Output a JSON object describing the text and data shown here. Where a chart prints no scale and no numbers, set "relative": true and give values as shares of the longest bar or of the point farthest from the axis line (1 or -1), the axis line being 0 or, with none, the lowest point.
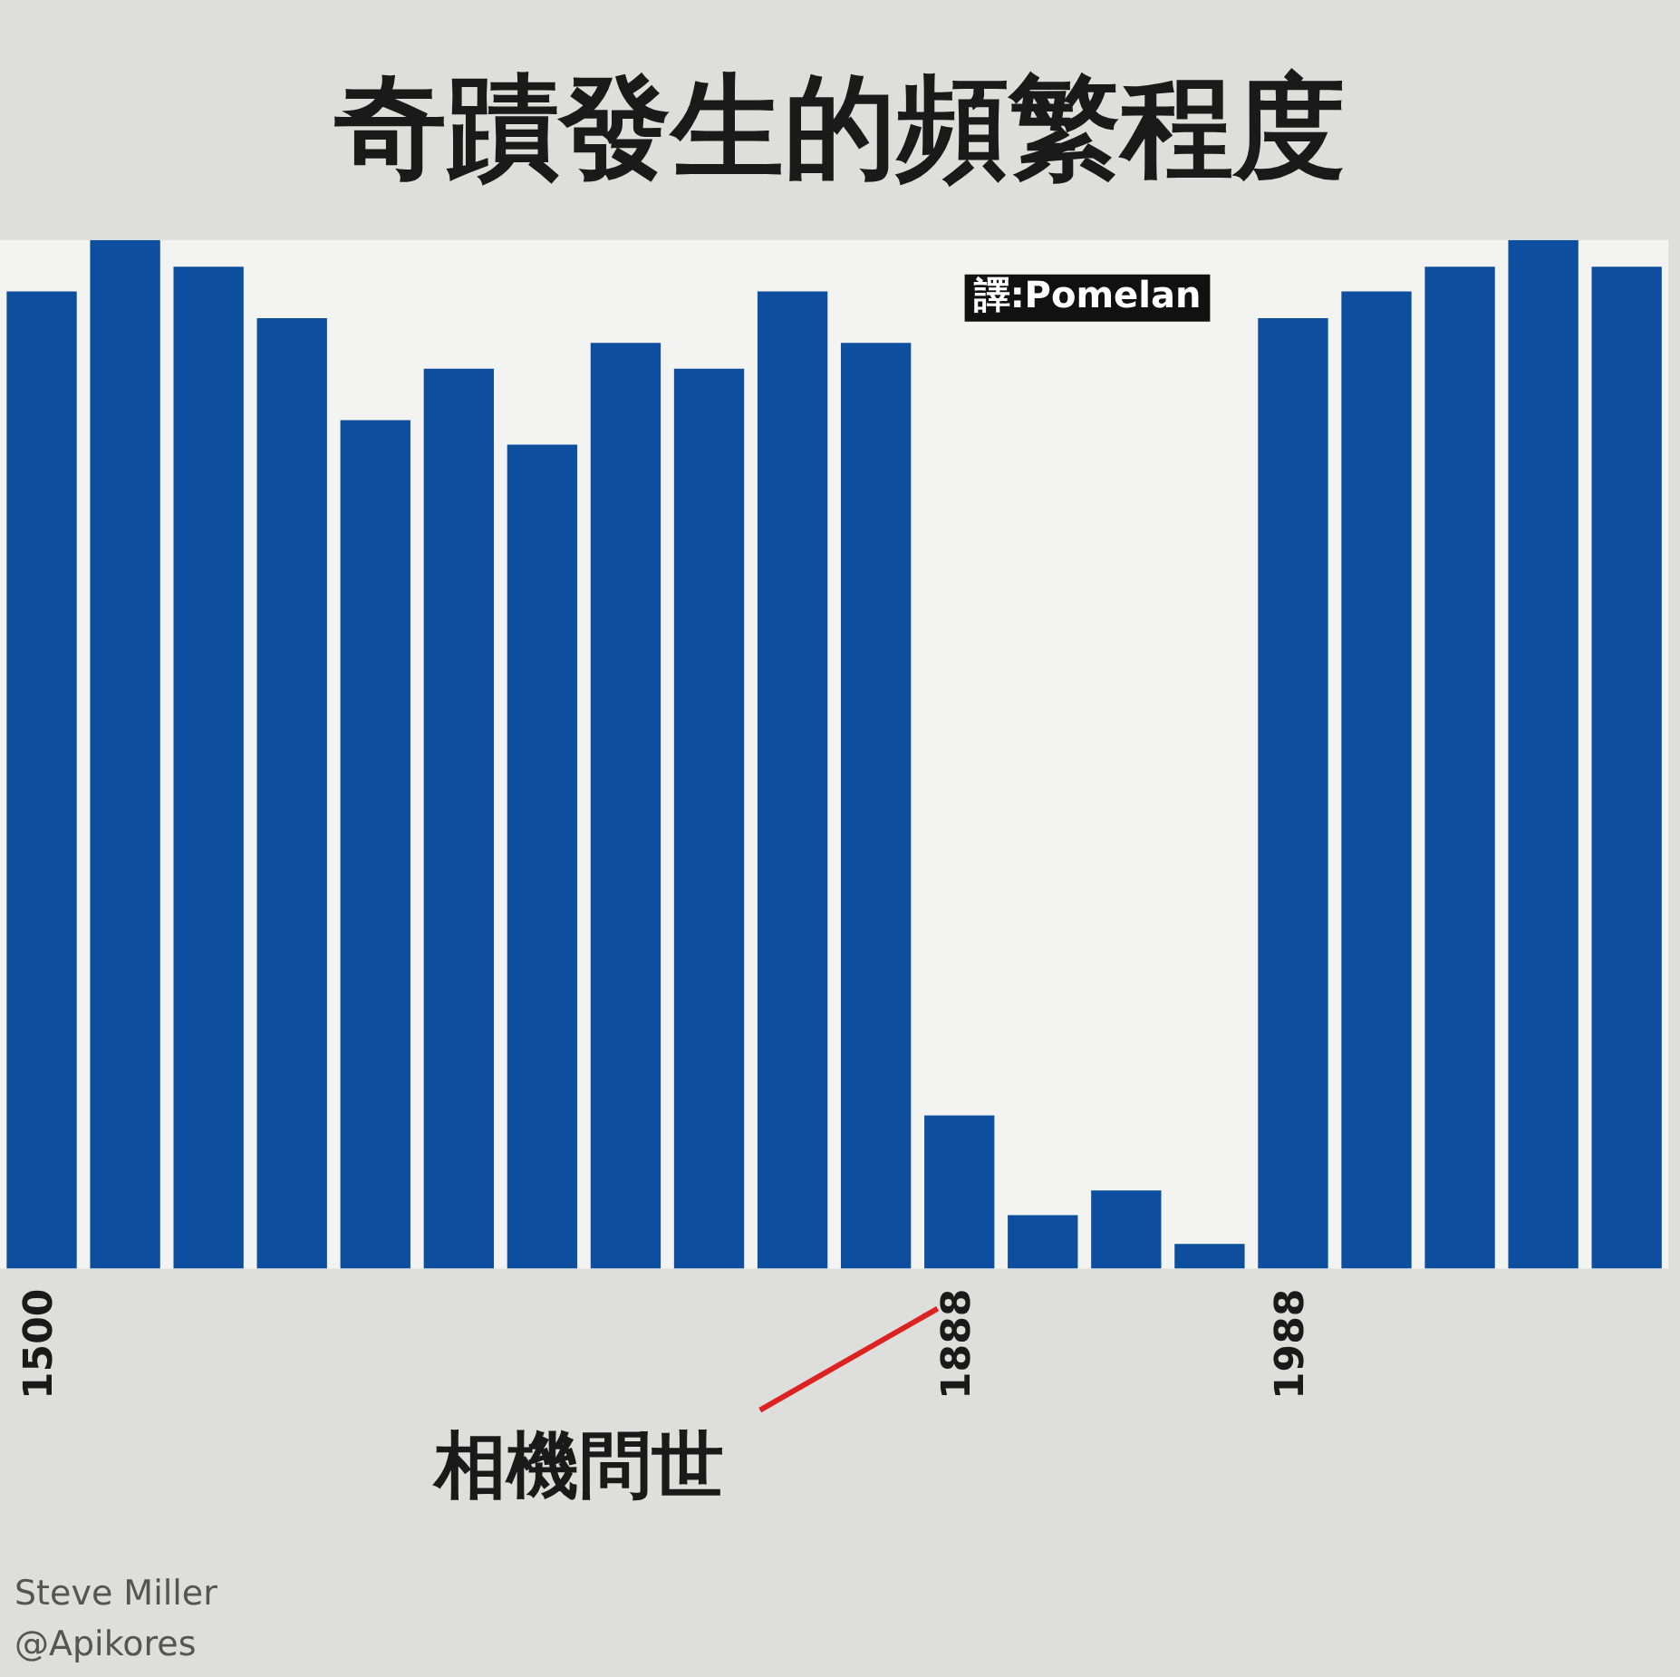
{
  "chart_data": {
    "type": "bar",
    "title": "奇蹟發生的頻繁程度",
    "relative": true,
    "categories": [
      "1500",
      null,
      null,
      null,
      null,
      null,
      null,
      null,
      null,
      null,
      null,
      "1888",
      null,
      null,
      null,
      "1988",
      null,
      null,
      null,
      null
    ],
    "values": [
      0.95,
      1,
      0.974,
      0.924,
      0.825,
      0.875,
      0.801,
      0.9,
      0.875,
      0.95,
      0.9,
      0.149,
      0.052,
      0.076,
      0.024,
      0.924,
      0.95,
      0.974,
      1,
      0.974
    ],
    "color": "#0d4f9e",
    "grid": false,
    "legend": false,
    "annotations": [
      "相機問世",
      "譯:Pomelan",
      "Steve Miller",
      "@Apikores"
    ]
  }
}
